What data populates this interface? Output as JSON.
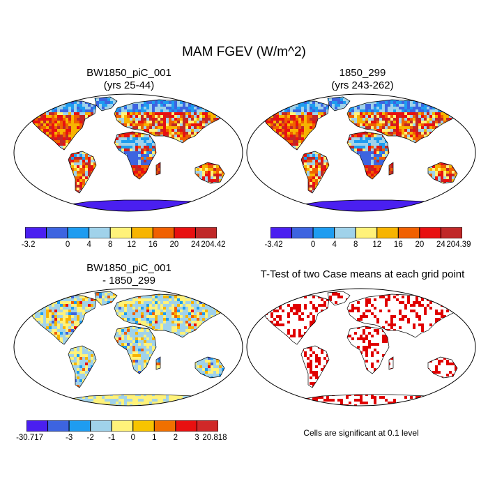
{
  "title": "MAM FGEV (W/m^2)",
  "panels": [
    {
      "id": "case1",
      "title_line1": "BW1850_piC_001",
      "title_line2": "(yrs 25-44)"
    },
    {
      "id": "case2",
      "title_line1": "1850_299",
      "title_line2": "(yrs 243-262)"
    },
    {
      "id": "diff",
      "title_line1": "BW1850_piC_001",
      "title_line2": "- 1850_299"
    },
    {
      "id": "ttest",
      "title_line1": "T-Test of two Case means at each grid point",
      "title_line2": ""
    }
  ],
  "colorbars": {
    "case1": {
      "labels": [
        "-3.2",
        "0",
        "4",
        "8",
        "12",
        "16",
        "20",
        "24",
        "204.42"
      ],
      "colors": [
        "#4a1ff0",
        "#3d64e0",
        "#1e9cf0",
        "#a0d2ea",
        "#fff27a",
        "#f7b400",
        "#f06000",
        "#e81010",
        "#c02828"
      ]
    },
    "case2": {
      "labels": [
        "-3.42",
        "0",
        "4",
        "8",
        "12",
        "16",
        "20",
        "24",
        "204.39"
      ],
      "colors": [
        "#4a1ff0",
        "#3d64e0",
        "#1e9cf0",
        "#a0d2ea",
        "#fff27a",
        "#f7b400",
        "#f06000",
        "#e81010",
        "#c02828"
      ]
    },
    "diff": {
      "labels": [
        "-30.717",
        "-3",
        "-2",
        "-1",
        "0",
        "1",
        "2",
        "3",
        "20.818"
      ],
      "colors": [
        "#4a1ff0",
        "#3d64e0",
        "#1e9cf0",
        "#a0d2ea",
        "#fff27a",
        "#f7c400",
        "#f07000",
        "#e81010",
        "#d02828"
      ]
    }
  },
  "significance_note": "Cells are significant at 0.1 level"
}
